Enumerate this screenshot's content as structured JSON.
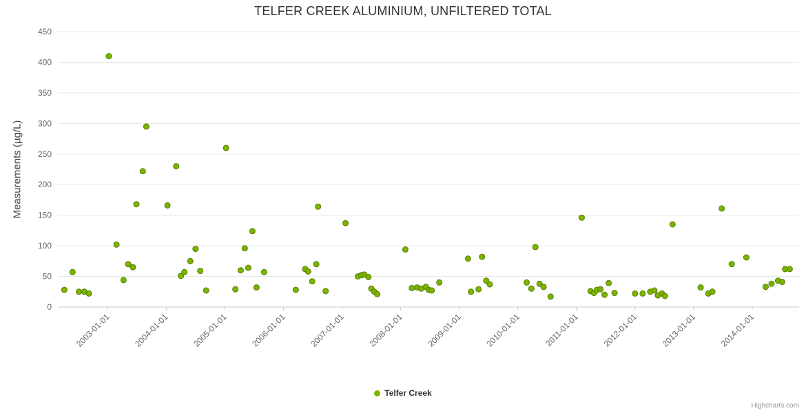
{
  "title": "TELFER CREEK ALUMINIUM, UNFILTERED TOTAL",
  "legend": {
    "label": "Telfer Creek"
  },
  "credits": "Highcharts.com",
  "colors": {
    "grid": "#e6e6e6",
    "axis": "#c8c8c8",
    "tick_label": "#666666",
    "title": "#333333"
  },
  "chart_data": {
    "type": "scatter",
    "title": "TELFER CREEK ALUMINIUM, UNFILTERED TOTAL",
    "xlabel": "",
    "ylabel": "Measurements (µg/L)",
    "ylim": [
      0,
      450
    ],
    "xlim": [
      2002.15,
      2014.8
    ],
    "grid": true,
    "legend_position": "bottom-center",
    "y_ticks": [
      0,
      50,
      100,
      150,
      200,
      250,
      300,
      350,
      400,
      450
    ],
    "x_ticks": [
      "2003-01-01",
      "2004-01-01",
      "2005-01-01",
      "2006-01-01",
      "2007-01-01",
      "2008-01-01",
      "2009-01-01",
      "2010-01-01",
      "2011-01-01",
      "2012-01-01",
      "2013-01-01",
      "2014-01-01"
    ],
    "x_tick_years": [
      2003,
      2004,
      2005,
      2006,
      2007,
      2008,
      2009,
      2010,
      2011,
      2012,
      2013,
      2014
    ],
    "series": [
      {
        "name": "Telfer Creek",
        "color": "#7cb400",
        "line_color": "#557d00",
        "points": [
          [
            2002.26,
            28
          ],
          [
            2002.4,
            57
          ],
          [
            2002.51,
            25
          ],
          [
            2002.6,
            25
          ],
          [
            2002.68,
            22
          ],
          [
            2003.02,
            410
          ],
          [
            2003.15,
            102
          ],
          [
            2003.27,
            44
          ],
          [
            2003.35,
            70
          ],
          [
            2003.43,
            65
          ],
          [
            2003.49,
            168
          ],
          [
            2003.6,
            222
          ],
          [
            2003.66,
            295
          ],
          [
            2004.02,
            166
          ],
          [
            2004.17,
            230
          ],
          [
            2004.25,
            51
          ],
          [
            2004.31,
            57
          ],
          [
            2004.41,
            75
          ],
          [
            2004.5,
            95
          ],
          [
            2004.58,
            59
          ],
          [
            2004.68,
            27
          ],
          [
            2005.02,
            260
          ],
          [
            2005.18,
            29
          ],
          [
            2005.27,
            60
          ],
          [
            2005.34,
            96
          ],
          [
            2005.4,
            64
          ],
          [
            2005.47,
            124
          ],
          [
            2005.54,
            32
          ],
          [
            2005.67,
            57
          ],
          [
            2006.21,
            28
          ],
          [
            2006.37,
            62
          ],
          [
            2006.42,
            58
          ],
          [
            2006.49,
            42
          ],
          [
            2006.56,
            70
          ],
          [
            2006.59,
            164
          ],
          [
            2006.72,
            26
          ],
          [
            2007.06,
            137
          ],
          [
            2007.27,
            50
          ],
          [
            2007.33,
            52
          ],
          [
            2007.38,
            53
          ],
          [
            2007.45,
            49
          ],
          [
            2007.5,
            30
          ],
          [
            2007.55,
            25
          ],
          [
            2007.6,
            21
          ],
          [
            2008.08,
            94
          ],
          [
            2008.19,
            31
          ],
          [
            2008.28,
            32
          ],
          [
            2008.35,
            30
          ],
          [
            2008.43,
            33
          ],
          [
            2008.48,
            28
          ],
          [
            2008.53,
            27
          ],
          [
            2008.66,
            40
          ],
          [
            2009.15,
            79
          ],
          [
            2009.2,
            25
          ],
          [
            2009.33,
            29
          ],
          [
            2009.39,
            82
          ],
          [
            2009.46,
            43
          ],
          [
            2009.52,
            37
          ],
          [
            2010.15,
            40
          ],
          [
            2010.23,
            30
          ],
          [
            2010.3,
            98
          ],
          [
            2010.37,
            38
          ],
          [
            2010.44,
            33
          ],
          [
            2010.56,
            17
          ],
          [
            2011.09,
            146
          ],
          [
            2011.24,
            26
          ],
          [
            2011.3,
            23
          ],
          [
            2011.35,
            28
          ],
          [
            2011.41,
            29
          ],
          [
            2011.48,
            20
          ],
          [
            2011.55,
            39
          ],
          [
            2011.65,
            23
          ],
          [
            2012.0,
            22
          ],
          [
            2012.13,
            22
          ],
          [
            2012.26,
            25
          ],
          [
            2012.33,
            27
          ],
          [
            2012.39,
            19
          ],
          [
            2012.46,
            22
          ],
          [
            2012.51,
            18
          ],
          [
            2012.64,
            135
          ],
          [
            2013.12,
            32
          ],
          [
            2013.25,
            22
          ],
          [
            2013.32,
            25
          ],
          [
            2013.48,
            161
          ],
          [
            2013.65,
            70
          ],
          [
            2013.9,
            81
          ],
          [
            2014.23,
            33
          ],
          [
            2014.33,
            38
          ],
          [
            2014.44,
            43
          ],
          [
            2014.51,
            41
          ],
          [
            2014.56,
            62
          ],
          [
            2014.64,
            62
          ]
        ]
      }
    ]
  }
}
